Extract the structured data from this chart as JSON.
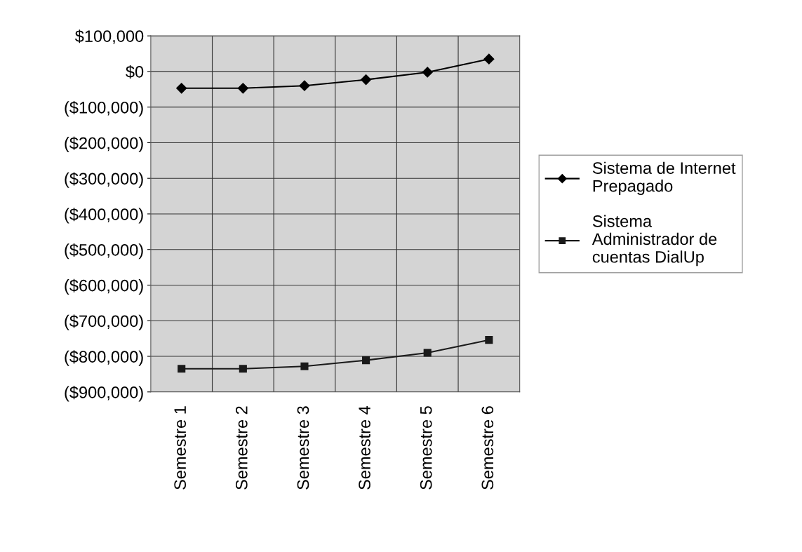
{
  "chart_data": {
    "type": "line",
    "categories": [
      "Semestre 1",
      "Semestre 2",
      "Semestre 3",
      "Semestre 4",
      "Semestre 5",
      "Semestre 6"
    ],
    "series": [
      {
        "name": "Sistema de Internet Prepagado",
        "color": "#000000",
        "marker": "diamond",
        "values": [
          -47000,
          -47000,
          -40000,
          -23000,
          -2000,
          35000
        ]
      },
      {
        "name": "Sistema Administrador de cuentas DialUp",
        "color": "#1a1a1a",
        "marker": "square",
        "values": [
          -835000,
          -835000,
          -828000,
          -811000,
          -790000,
          -754000
        ]
      }
    ],
    "ylim": [
      -900000,
      100000
    ],
    "yticks": [
      {
        "value": 100000,
        "label": "$100,000"
      },
      {
        "value": 0,
        "label": "$0"
      },
      {
        "value": -100000,
        "label": "($100,000)"
      },
      {
        "value": -200000,
        "label": "($200,000)"
      },
      {
        "value": -300000,
        "label": "($300,000)"
      },
      {
        "value": -400000,
        "label": "($400,000)"
      },
      {
        "value": -500000,
        "label": "($500,000)"
      },
      {
        "value": -600000,
        "label": "($600,000)"
      },
      {
        "value": -700000,
        "label": "($700,000)"
      },
      {
        "value": -800000,
        "label": "($800,000)"
      },
      {
        "value": -900000,
        "label": "($900,000)"
      }
    ],
    "grid": true,
    "legend": "right",
    "line_style": "solid"
  }
}
